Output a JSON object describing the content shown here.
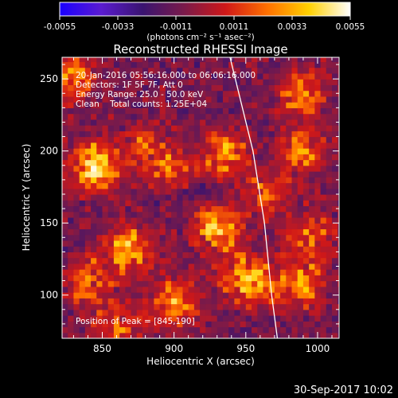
{
  "colorbar": {
    "ticks": [
      "-0.0055",
      "-0.0033",
      "-0.0011",
      "0.0011",
      "0.0033",
      "0.0055"
    ],
    "unit_label": "(photons cm⁻² s⁻¹ asec⁻²)",
    "colormap": [
      "#1a00ff",
      "#5a1bd0",
      "#3a1470",
      "#7a1a4a",
      "#d01818",
      "#ff7000",
      "#ffd000",
      "#ffffff"
    ]
  },
  "image_info": {
    "time_range": "20-Jan-2016 05:56:16.000 to 06:06:16.000",
    "detectors": "Detectors: 1F 5F 7F, Att 0",
    "energy_range": "Energy Range: 25.0 - 50.0 keV",
    "algorithm_counts": "Clean    Total counts: 1.25E+04",
    "peak_position": "Position of Peak = [845,190]"
  },
  "timestamp": "30-Sep-2017 10:02",
  "chart_data": {
    "type": "heatmap",
    "title": "Reconstructed RHESSI Image",
    "xlabel": "Heliocentric X (arcsec)",
    "ylabel": "Heliocentric Y (arcsec)",
    "xlim": [
      822,
      1015
    ],
    "ylim": [
      70,
      265
    ],
    "x_ticks": [
      850,
      900,
      950,
      1000
    ],
    "y_ticks": [
      100,
      150,
      200,
      250
    ],
    "value_range": [
      -0.0055,
      0.0055
    ],
    "grid": false,
    "limb_curve": [
      [
        939,
        265
      ],
      [
        955,
        200
      ],
      [
        963,
        150
      ],
      [
        968,
        100
      ],
      [
        972,
        70
      ]
    ],
    "emission_sources": [
      {
        "x": 830,
        "y": 250,
        "value": 0.0035
      },
      {
        "x": 845,
        "y": 190,
        "value": 0.0055
      },
      {
        "x": 868,
        "y": 132,
        "value": 0.004
      },
      {
        "x": 930,
        "y": 148,
        "value": 0.0045
      },
      {
        "x": 935,
        "y": 198,
        "value": 0.0035
      },
      {
        "x": 900,
        "y": 185,
        "value": 0.0025
      },
      {
        "x": 880,
        "y": 200,
        "value": 0.0025
      },
      {
        "x": 990,
        "y": 240,
        "value": 0.0035
      },
      {
        "x": 990,
        "y": 200,
        "value": 0.003
      },
      {
        "x": 995,
        "y": 140,
        "value": 0.003
      },
      {
        "x": 990,
        "y": 108,
        "value": 0.0035
      },
      {
        "x": 960,
        "y": 108,
        "value": 0.003
      },
      {
        "x": 945,
        "y": 115,
        "value": 0.003
      },
      {
        "x": 900,
        "y": 95,
        "value": 0.0035
      },
      {
        "x": 840,
        "y": 110,
        "value": 0.003
      },
      {
        "x": 860,
        "y": 80,
        "value": 0.0025
      },
      {
        "x": 965,
        "y": 170,
        "value": 0.0025
      }
    ]
  }
}
